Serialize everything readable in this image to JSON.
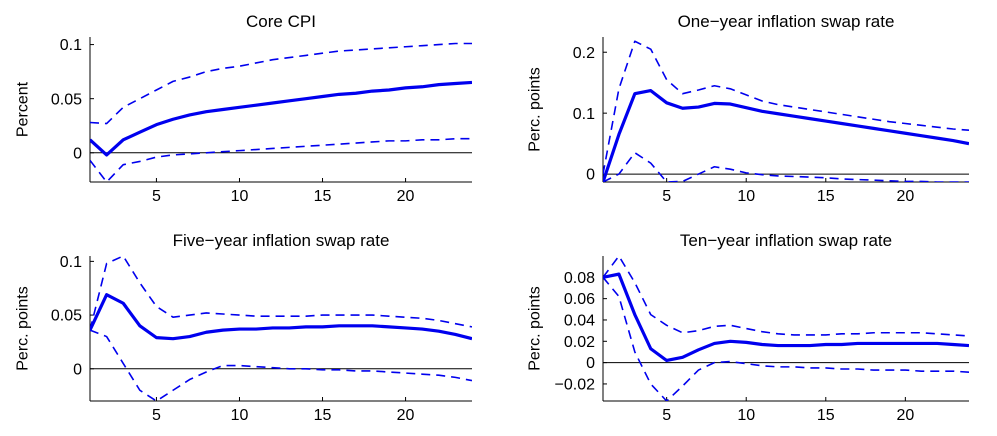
{
  "chart_data": [
    {
      "type": "line",
      "title": "Core CPI",
      "ylabel": "Percent",
      "xlim": [
        1,
        24
      ],
      "ylim": [
        -0.027,
        0.107
      ],
      "xticks": [
        5,
        10,
        15,
        20
      ],
      "yticks": [
        0,
        0.05,
        0.1
      ],
      "ytick_labels": [
        "0",
        "0.05",
        "0.1"
      ],
      "x": [
        1,
        2,
        3,
        4,
        5,
        6,
        7,
        8,
        9,
        10,
        11,
        12,
        13,
        14,
        15,
        16,
        17,
        18,
        19,
        20,
        21,
        22,
        23,
        24
      ],
      "series": [
        {
          "role": "estimate",
          "values": [
            0.012,
            -0.002,
            0.012,
            0.019,
            0.026,
            0.031,
            0.035,
            0.038,
            0.04,
            0.042,
            0.044,
            0.046,
            0.048,
            0.05,
            0.052,
            0.054,
            0.055,
            0.057,
            0.058,
            0.06,
            0.061,
            0.063,
            0.064,
            0.065
          ]
        },
        {
          "role": "upper",
          "values": [
            0.028,
            0.027,
            0.042,
            0.05,
            0.058,
            0.066,
            0.07,
            0.075,
            0.078,
            0.08,
            0.083,
            0.086,
            0.088,
            0.09,
            0.092,
            0.094,
            0.095,
            0.096,
            0.097,
            0.098,
            0.099,
            0.1,
            0.101,
            0.101
          ]
        },
        {
          "role": "lower",
          "values": [
            -0.007,
            -0.027,
            -0.011,
            -0.008,
            -0.004,
            -0.002,
            -0.001,
            0.0,
            0.001,
            0.002,
            0.003,
            0.004,
            0.005,
            0.006,
            0.007,
            0.008,
            0.009,
            0.01,
            0.011,
            0.011,
            0.012,
            0.012,
            0.013,
            0.013
          ]
        }
      ]
    },
    {
      "type": "line",
      "title": "One−year inflation swap rate",
      "ylabel": "Perc. points",
      "xlim": [
        1,
        24
      ],
      "ylim": [
        -0.013,
        0.225
      ],
      "xticks": [
        5,
        10,
        15,
        20
      ],
      "yticks": [
        0,
        0.1,
        0.2
      ],
      "ytick_labels": [
        "0",
        "0.1",
        "0.2"
      ],
      "x": [
        1,
        2,
        3,
        4,
        5,
        6,
        7,
        8,
        9,
        10,
        11,
        12,
        13,
        14,
        15,
        16,
        17,
        18,
        19,
        20,
        21,
        22,
        23,
        24
      ],
      "series": [
        {
          "role": "estimate",
          "values": [
            -0.013,
            0.065,
            0.132,
            0.137,
            0.117,
            0.108,
            0.11,
            0.116,
            0.115,
            0.109,
            0.103,
            0.099,
            0.095,
            0.091,
            0.087,
            0.083,
            0.079,
            0.075,
            0.071,
            0.067,
            0.063,
            0.059,
            0.055,
            0.05
          ]
        },
        {
          "role": "upper",
          "values": [
            0.0,
            0.14,
            0.218,
            0.205,
            0.155,
            0.132,
            0.138,
            0.145,
            0.14,
            0.13,
            0.12,
            0.114,
            0.11,
            0.106,
            0.102,
            0.098,
            0.094,
            0.09,
            0.086,
            0.083,
            0.08,
            0.077,
            0.074,
            0.072
          ]
        },
        {
          "role": "lower",
          "values": [
            -0.013,
            0.0,
            0.035,
            0.018,
            -0.013,
            -0.012,
            0.0,
            0.012,
            0.008,
            0.002,
            -0.001,
            -0.003,
            -0.004,
            -0.005,
            -0.006,
            -0.008,
            -0.009,
            -0.01,
            -0.011,
            -0.012,
            -0.012,
            -0.013,
            -0.013,
            -0.013
          ]
        }
      ]
    },
    {
      "type": "line",
      "title": "Five−year inflation swap rate",
      "ylabel": "Perc. points",
      "xlim": [
        1,
        24
      ],
      "ylim": [
        -0.03,
        0.105
      ],
      "xticks": [
        5,
        10,
        15,
        20
      ],
      "yticks": [
        0,
        0.05,
        0.1
      ],
      "ytick_labels": [
        "0",
        "0.05",
        "0.1"
      ],
      "x": [
        1,
        2,
        3,
        4,
        5,
        6,
        7,
        8,
        9,
        10,
        11,
        12,
        13,
        14,
        15,
        16,
        17,
        18,
        19,
        20,
        21,
        22,
        23,
        24
      ],
      "series": [
        {
          "role": "estimate",
          "values": [
            0.036,
            0.069,
            0.061,
            0.04,
            0.029,
            0.028,
            0.03,
            0.034,
            0.036,
            0.037,
            0.037,
            0.038,
            0.038,
            0.039,
            0.039,
            0.04,
            0.04,
            0.04,
            0.039,
            0.038,
            0.037,
            0.035,
            0.032,
            0.028
          ]
        },
        {
          "role": "upper",
          "values": [
            0.036,
            0.098,
            0.105,
            0.08,
            0.058,
            0.048,
            0.05,
            0.052,
            0.051,
            0.05,
            0.049,
            0.049,
            0.049,
            0.049,
            0.05,
            0.05,
            0.05,
            0.05,
            0.049,
            0.048,
            0.047,
            0.045,
            0.042,
            0.039
          ]
        },
        {
          "role": "lower",
          "values": [
            0.036,
            0.03,
            0.005,
            -0.02,
            -0.03,
            -0.02,
            -0.01,
            -0.003,
            0.003,
            0.003,
            0.002,
            0.001,
            0.0,
            0.0,
            -0.001,
            -0.001,
            -0.002,
            -0.002,
            -0.003,
            -0.004,
            -0.005,
            -0.006,
            -0.008,
            -0.011
          ]
        }
      ]
    },
    {
      "type": "line",
      "title": "Ten−year inflation swap rate",
      "ylabel": "Perc. points",
      "xlim": [
        1,
        24
      ],
      "ylim": [
        -0.036,
        0.1
      ],
      "xticks": [
        5,
        10,
        15,
        20
      ],
      "yticks": [
        -0.02,
        0,
        0.02,
        0.04,
        0.06,
        0.08
      ],
      "ytick_labels": [
        "−0.02",
        "0",
        "0.02",
        "0.04",
        "0.06",
        "0.08"
      ],
      "x": [
        1,
        2,
        3,
        4,
        5,
        6,
        7,
        8,
        9,
        10,
        11,
        12,
        13,
        14,
        15,
        16,
        17,
        18,
        19,
        20,
        21,
        22,
        23,
        24
      ],
      "series": [
        {
          "role": "estimate",
          "values": [
            0.08,
            0.083,
            0.045,
            0.013,
            0.002,
            0.005,
            0.012,
            0.018,
            0.02,
            0.019,
            0.017,
            0.016,
            0.016,
            0.016,
            0.017,
            0.017,
            0.018,
            0.018,
            0.018,
            0.018,
            0.018,
            0.018,
            0.017,
            0.016
          ]
        },
        {
          "role": "upper",
          "values": [
            0.08,
            0.1,
            0.075,
            0.045,
            0.035,
            0.028,
            0.03,
            0.034,
            0.035,
            0.032,
            0.029,
            0.027,
            0.026,
            0.026,
            0.026,
            0.027,
            0.027,
            0.028,
            0.028,
            0.028,
            0.028,
            0.027,
            0.026,
            0.025
          ]
        },
        {
          "role": "lower",
          "values": [
            0.08,
            0.062,
            0.01,
            -0.02,
            -0.036,
            -0.022,
            -0.007,
            0.0,
            0.001,
            -0.001,
            -0.003,
            -0.004,
            -0.004,
            -0.005,
            -0.005,
            -0.006,
            -0.006,
            -0.007,
            -0.007,
            -0.007,
            -0.008,
            -0.008,
            -0.008,
            -0.009
          ]
        }
      ]
    }
  ],
  "colors": {
    "line": "#0000ee",
    "zero_line": "#000000",
    "axis": "#000000"
  }
}
